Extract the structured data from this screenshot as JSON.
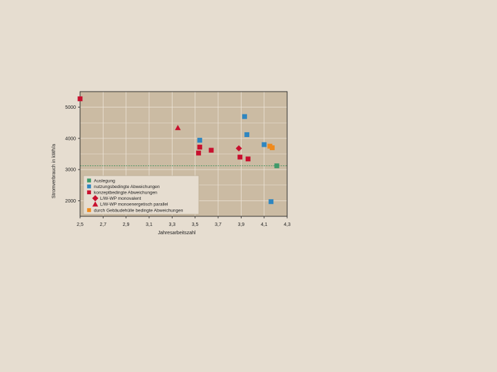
{
  "chart_data": {
    "type": "scatter",
    "title": "",
    "xlabel": "Jahresarbeitszahl",
    "ylabel": "Stromverbrauch in kWh/a",
    "xlim": [
      2.5,
      4.3
    ],
    "ylim": [
      1500,
      5500
    ],
    "x_ticks": [
      "2,5",
      "2,7",
      "2,9",
      "3,1",
      "3,3",
      "3,5",
      "3,7",
      "3,9",
      "4,1",
      "4,3"
    ],
    "x_tick_values": [
      2.5,
      2.7,
      2.9,
      3.1,
      3.3,
      3.5,
      3.7,
      3.9,
      4.1,
      4.3
    ],
    "y_ticks": [
      "2000",
      "3000",
      "4000",
      "5000"
    ],
    "y_tick_values": [
      2000,
      3000,
      4000,
      5000
    ],
    "grid": true,
    "reference_line": {
      "y": 3120,
      "color": "#3a8f5c",
      "style": "dashed"
    },
    "legend_position": "bottom-left",
    "legend": [
      {
        "label": "Auslegung",
        "color": "#3f9a6a",
        "marker": "square",
        "indent": false
      },
      {
        "label": "nutzungsbedingte Abweichungen",
        "color": "#2f86c0",
        "marker": "square",
        "indent": false
      },
      {
        "label": "konzeptbedingte Abweichungen",
        "color": "#c8102e",
        "marker": "square",
        "indent": false
      },
      {
        "label": "L/W-WP monovalent",
        "color": "#c8102e",
        "marker": "diamond",
        "indent": true
      },
      {
        "label": "L/W-WP monoenergetisch parallel",
        "color": "#c8102e",
        "marker": "triangle",
        "indent": true
      },
      {
        "label": "durch Gebäudehülle bedingte Abweichungen",
        "color": "#f08a1c",
        "marker": "square",
        "indent": false
      }
    ],
    "series": [
      {
        "name": "Auslegung",
        "color": "#3f9a6a",
        "marker": "square",
        "points": [
          [
            4.21,
            3120
          ]
        ]
      },
      {
        "name": "nutzungsbedingte Abweichungen",
        "color": "#2f86c0",
        "marker": "square",
        "points": [
          [
            3.54,
            3940
          ],
          [
            3.93,
            4700
          ],
          [
            3.95,
            4120
          ],
          [
            4.1,
            3800
          ],
          [
            4.16,
            1970
          ]
        ]
      },
      {
        "name": "konzeptbedingte Abweichungen",
        "color": "#c8102e",
        "marker": "square",
        "points": [
          [
            2.5,
            5270
          ],
          [
            3.54,
            3720
          ],
          [
            3.53,
            3530
          ],
          [
            3.64,
            3620
          ],
          [
            3.89,
            3400
          ],
          [
            3.96,
            3340
          ]
        ]
      },
      {
        "name": "L/W-WP monovalent",
        "color": "#c8102e",
        "marker": "diamond",
        "points": [
          [
            3.88,
            3680
          ]
        ]
      },
      {
        "name": "L/W-WP monoenergetisch parallel",
        "color": "#c8102e",
        "marker": "triangle",
        "points": [
          [
            3.35,
            4340
          ]
        ]
      },
      {
        "name": "durch Gebäudehülle bedingte Abweichungen",
        "color": "#f08a1c",
        "marker": "square",
        "points": [
          [
            4.15,
            3750
          ],
          [
            4.17,
            3700
          ]
        ]
      }
    ]
  }
}
